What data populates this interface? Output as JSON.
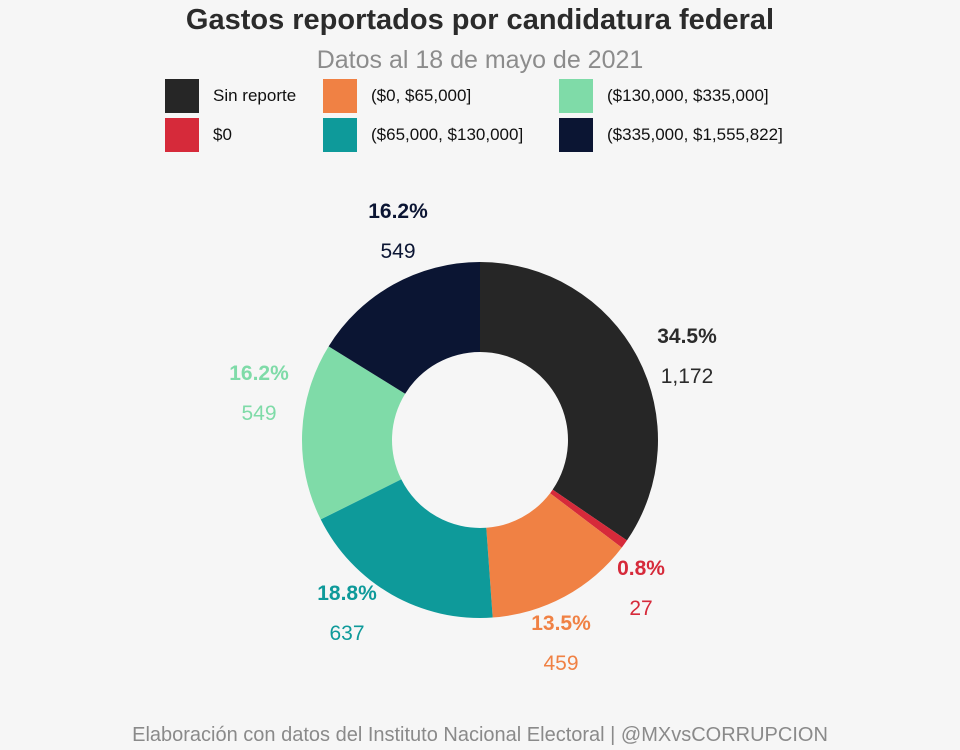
{
  "title": "Gastos reportados por candidatura federal",
  "subtitle": "Datos al 18 de mayo de 2021",
  "footer": "Elaboración con datos del Instituto Nacional Electoral | @MXvsCORRUPCION",
  "legend": [
    {
      "label": "Sin reporte",
      "color": "#262626"
    },
    {
      "label": "$0",
      "color": "#d62a3a"
    },
    {
      "label": "($0, $65,000]",
      "color": "#f08144"
    },
    {
      "label": "($65,000, $130,000]",
      "color": "#0e9a9a"
    },
    {
      "label": "($130,000, $335,000]",
      "color": "#7fdba8"
    },
    {
      "label": "($335,000, $1,555,822]",
      "color": "#0b1533"
    }
  ],
  "chart_data": {
    "type": "pie",
    "donut": true,
    "title": "Gastos reportados por candidatura federal",
    "subtitle": "Datos al 18 de mayo de 2021",
    "legend_position": "top",
    "slices": [
      {
        "label": "Sin reporte",
        "value": 1172,
        "pct_label": "34.5%",
        "count_label": "1,172",
        "color": "#262626"
      },
      {
        "label": "$0",
        "value": 27,
        "pct_label": "0.8%",
        "count_label": "27",
        "color": "#d62a3a"
      },
      {
        "label": "($0, $65,000]",
        "value": 459,
        "pct_label": "13.5%",
        "count_label": "459",
        "color": "#f08144"
      },
      {
        "label": "($65,000, $130,000]",
        "value": 637,
        "pct_label": "18.8%",
        "count_label": "637",
        "color": "#0e9a9a"
      },
      {
        "label": "($130,000, $335,000]",
        "value": 549,
        "pct_label": "16.2%",
        "count_label": "549",
        "color": "#7fdba8"
      },
      {
        "label": "($335,000, $1,555,822]",
        "value": 549,
        "pct_label": "16.2%",
        "count_label": "549",
        "color": "#0b1533"
      }
    ]
  }
}
